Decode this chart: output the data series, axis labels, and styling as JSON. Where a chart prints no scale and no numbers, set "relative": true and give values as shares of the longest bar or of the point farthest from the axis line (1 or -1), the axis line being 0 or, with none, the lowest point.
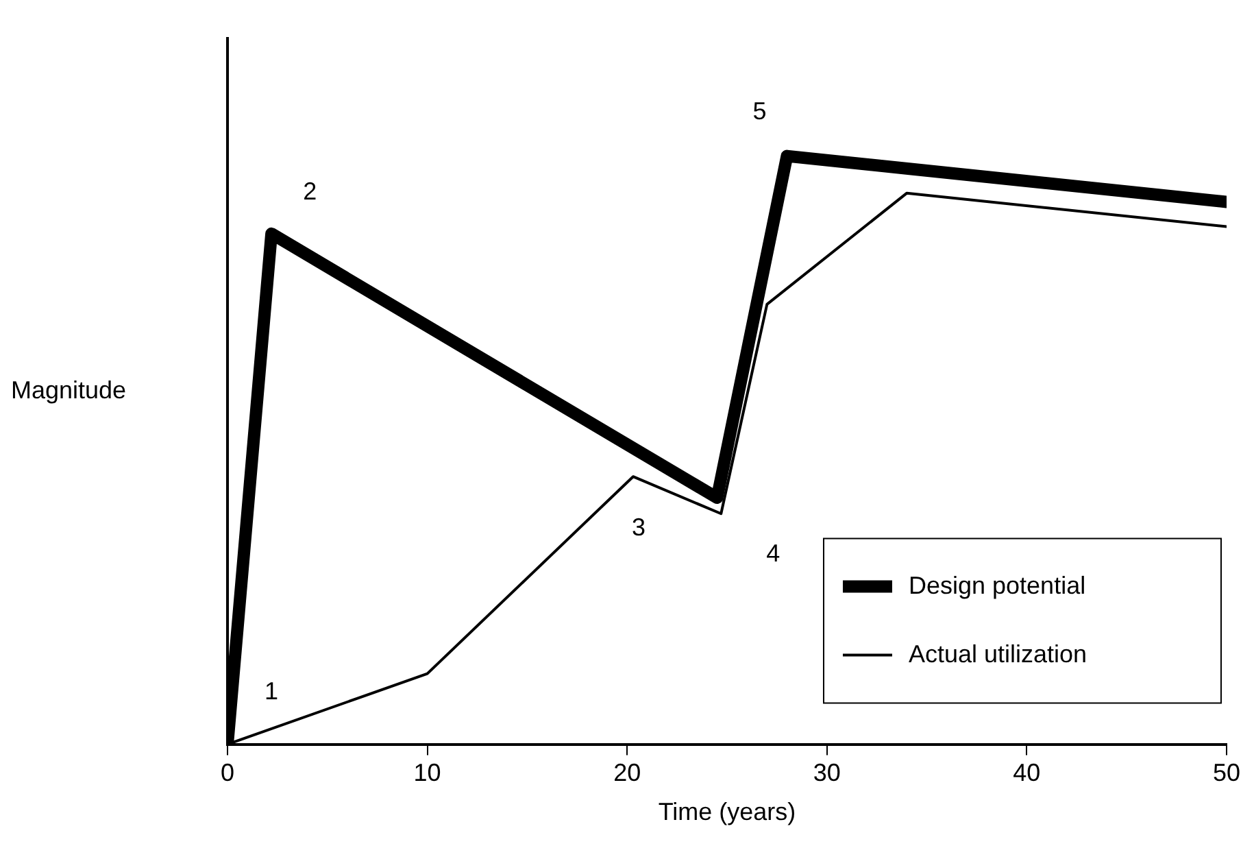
{
  "chart_data": {
    "type": "line",
    "relative": true,
    "xlabel": "Time (years)",
    "ylabel": "Magnitude",
    "xlim": [
      0,
      50
    ],
    "xticks": [
      0,
      10,
      20,
      30,
      40,
      50
    ],
    "grid": false,
    "legend": "bottom right",
    "marker": "none",
    "line_style": "solid",
    "series": [
      {
        "name": "Design potential",
        "color": "#000000",
        "x": [
          0,
          2.2,
          24.5,
          28,
          50
        ],
        "values": [
          0,
          0.868,
          0.419,
          1.0,
          0.922
        ]
      },
      {
        "name": "Actual utilization",
        "color": "#000000",
        "x": [
          0,
          10,
          20.3,
          24.7,
          27,
          34,
          50
        ],
        "values": [
          0,
          0.12,
          0.455,
          0.392,
          0.748,
          0.937,
          0.88
        ]
      }
    ],
    "annotations": [
      {
        "text": "1",
        "x": 0,
        "y": 0
      },
      {
        "text": "2",
        "x": 2.2,
        "y": 0.868
      },
      {
        "text": "3",
        "x": 20.3,
        "y": 0.455
      },
      {
        "text": "4",
        "x": 24.7,
        "y": 0.392
      },
      {
        "text": "5",
        "x": 28,
        "y": 1.0
      }
    ]
  }
}
